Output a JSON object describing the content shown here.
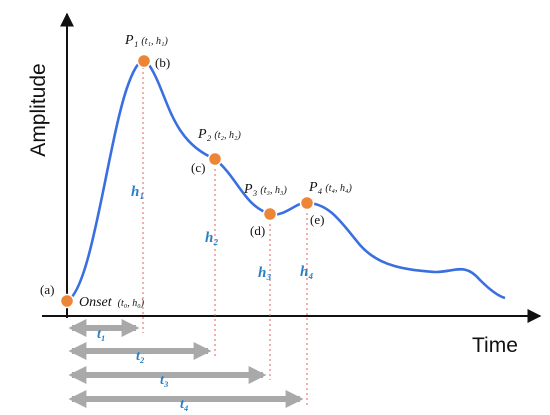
{
  "axes": {
    "y_title": "Amplitude",
    "x_title": "Time"
  },
  "colors": {
    "curve": "#3a6fe0",
    "point": "#ed8537",
    "label_blue": "#2a7fc4",
    "arrow_gray": "#a9a9a9",
    "guide_red": "#e06060"
  },
  "points": [
    {
      "id": "onset",
      "label": "Onset",
      "sub": "(t₀, h₀)",
      "letter": "(a)"
    },
    {
      "id": "p1",
      "label": "P₁",
      "sub": "(t₁, h₁)",
      "letter": "(b)"
    },
    {
      "id": "p2",
      "label": "P₂",
      "sub": "(t₂, h₂)",
      "letter": "(c)"
    },
    {
      "id": "p3",
      "label": "P₃",
      "sub": "(t₃, h₃)",
      "letter": "(d)"
    },
    {
      "id": "p4",
      "label": "P₄",
      "sub": "(t₄, h₄)",
      "letter": "(e)"
    }
  ],
  "heights": [
    "h₁",
    "h₂",
    "h₃",
    "h₄"
  ],
  "intervals": [
    "t₁",
    "t₂",
    "t₃",
    "t₄"
  ]
}
